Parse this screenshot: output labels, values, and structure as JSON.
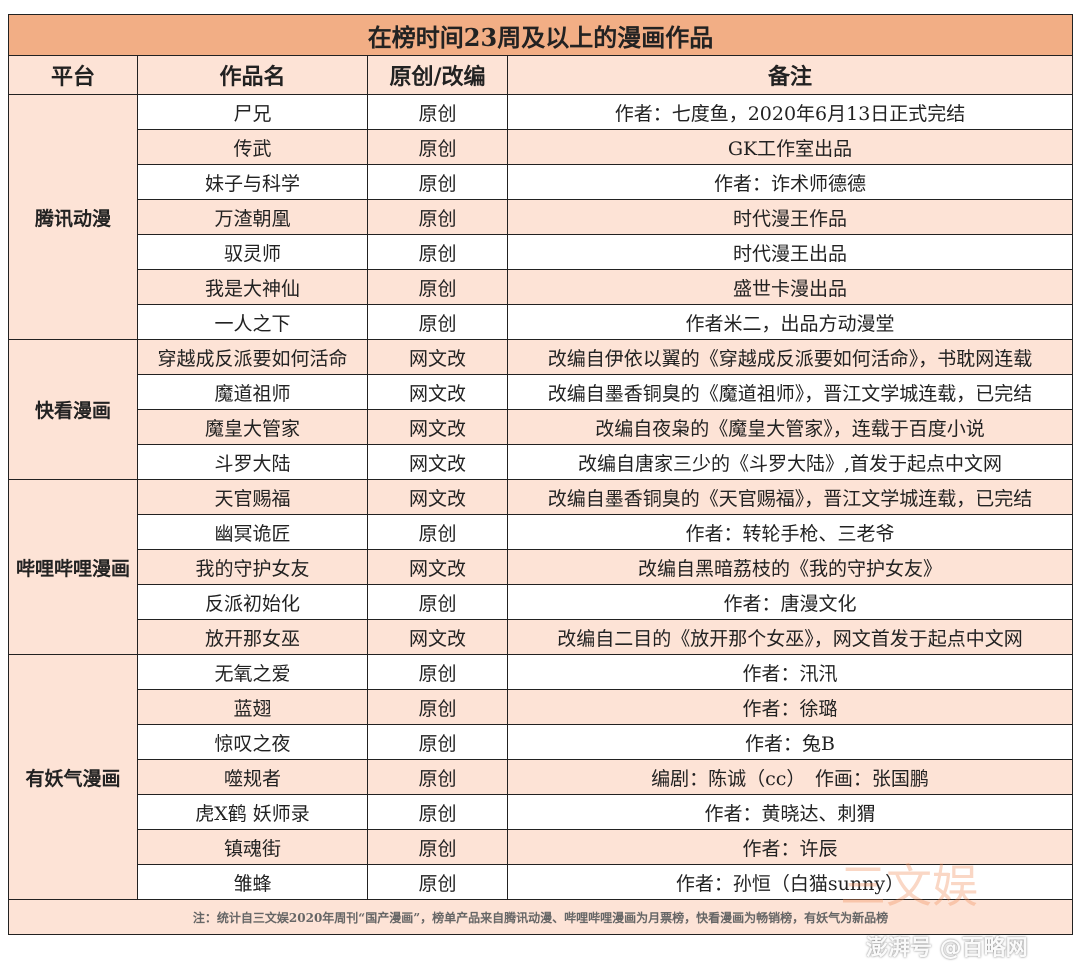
{
  "title": "在榜时间23周及以上的漫画作品",
  "headers": [
    "平台",
    "作品名",
    "原创/改编",
    "备注"
  ],
  "groups": [
    {
      "platform": "腾讯动漫",
      "rows": [
        [
          "尸兄",
          "原创",
          "作者：七度鱼，2020年6月13日正式完结"
        ],
        [
          "传武",
          "原创",
          "GK工作室出品"
        ],
        [
          "妹子与科学",
          "原创",
          "作者：诈术师德德"
        ],
        [
          "万渣朝凰",
          "原创",
          "时代漫王作品"
        ],
        [
          "驭灵师",
          "原创",
          "时代漫王出品"
        ],
        [
          "我是大神仙",
          "原创",
          "盛世卡漫出品"
        ],
        [
          "一人之下",
          "原创",
          "作者米二，出品方动漫堂"
        ]
      ]
    },
    {
      "platform": "快看漫画",
      "rows": [
        [
          "穿越成反派要如何活命",
          "网文改",
          "改编自伊依以翼的《穿越成反派要如何活命》，书耽网连载"
        ],
        [
          "魔道祖师",
          "网文改",
          "改编自墨香铜臭的《魔道祖师》，晋江文学城连载，已完结"
        ],
        [
          "魔皇大管家",
          "网文改",
          "改编自夜枭的《魔皇大管家》，连载于百度小说"
        ],
        [
          "斗罗大陆",
          "网文改",
          "改编自唐家三少的《斗罗大陆》,首发于起点中文网"
        ]
      ]
    },
    {
      "platform": "哔哩哔哩漫画",
      "rows": [
        [
          "天官赐福",
          "网文改",
          "改编自墨香铜臭的《天官赐福》，晋江文学城连载，已完结"
        ],
        [
          "幽冥诡匠",
          "原创",
          "作者：转轮手枪、三老爷"
        ],
        [
          "我的守护女友",
          "网文改",
          "改编自黑暗荔枝的《我的守护女友》"
        ],
        [
          "反派初始化",
          "原创",
          "作者：唐漫文化"
        ],
        [
          "放开那女巫",
          "网文改",
          "改编自二目的《放开那个女巫》，网文首发于起点中文网"
        ]
      ]
    },
    {
      "platform": "有妖气漫画",
      "rows": [
        [
          "无氧之爱",
          "原创",
          "作者：汛汛"
        ],
        [
          "蓝翅",
          "原创",
          "作者：徐璐"
        ],
        [
          "惊叹之夜",
          "原创",
          "作者：兔B"
        ],
        [
          "噬规者",
          "原创",
          "编剧：陈诚（cc）　作画：张国鹏"
        ],
        [
          "虎X鹤 妖师录",
          "原创",
          "作者：黄晓达、刺猬"
        ],
        [
          "镇魂街",
          "原创",
          "作者：许辰"
        ],
        [
          "雏蜂",
          "原创",
          "作者：孙恒（白猫sunny）"
        ]
      ]
    }
  ],
  "footnote": "注：统计自三文娱2020年周刊“国产漫画”，榜单产品来自腾讯动漫、哔哩哔哩漫画为月票榜，快看漫画为畅销榜，有妖气为新品榜",
  "watermarks": {
    "brand": "三文娱",
    "source": "澎湃号 @百略网"
  },
  "colors": {
    "title_bg": "#f2ae85",
    "header_bg": "#fde3d6",
    "row_alt_bg": "#fde3d6"
  }
}
